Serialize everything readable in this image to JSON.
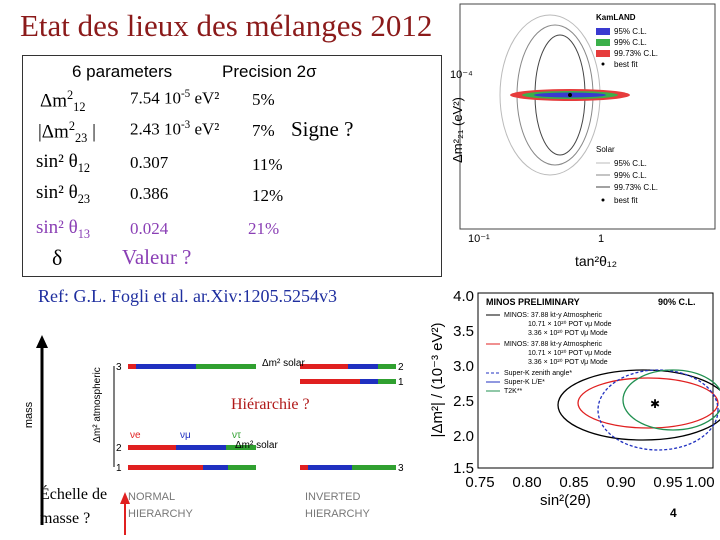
{
  "title": "Etat des lieux des mélanges 2012",
  "table": {
    "headers": [
      "6 parameters",
      "Precision 2σ"
    ],
    "rows": [
      {
        "name": [
          "Δm",
          "2",
          "12"
        ],
        "value": [
          "7.54 10",
          "-5",
          " eV²"
        ],
        "precision": "5%"
      },
      {
        "name": [
          "|Δm",
          "2",
          "23",
          " |"
        ],
        "value": [
          "2.43 10",
          "-3",
          " eV²"
        ],
        "precision": "7%",
        "note": "Signe ?"
      },
      {
        "name": [
          "sin² θ",
          "12"
        ],
        "value": "0.307",
        "precision": "11%"
      },
      {
        "name": [
          "sin² θ",
          "23"
        ],
        "value": "0.386",
        "precision": "12%"
      },
      {
        "name": [
          "sin² θ",
          "13"
        ],
        "value": "0.024",
        "precision": "21%"
      },
      {
        "name": "δ",
        "value": "Valeur ?"
      }
    ]
  },
  "reference": "Ref: G.L. Fogli et al. ar.Xiv:1205.5254v3",
  "kamland": {
    "legend_top": [
      "KamLAND",
      "95% C.L.",
      "99% C.L.",
      "99.73% C.L.",
      "best fit"
    ],
    "legend_bottom": [
      "Solar",
      "95% C.L.",
      "99% C.L.",
      "99.73% C.L.",
      "best fit"
    ],
    "y_label": "Δm²₂₁ (eV²)",
    "y_tick": "10⁻⁴",
    "x_ticks": [
      "10⁻¹",
      "1"
    ],
    "x_label": "tan²θ₁₂"
  },
  "minos": {
    "title": "MINOS PRELIMINARY",
    "cl": "90% C.L.",
    "legend": [
      "MINOS: 37.88 kt-y Atmospheric",
      "10.71 × 10²⁰ POT νμ Mode",
      "3.36 × 10²⁰ POT ν̄μ Mode",
      "MINOS: 37.88 kt-y Atmospheric",
      "10.71 × 10²⁰ POT νμ Mode",
      "3.36 × 10²⁰ POT ν̄μ Mode",
      "Super-K zenith angle*",
      "Super-K L/E*",
      "T2K**"
    ],
    "y_ticks": [
      "4.0",
      "3.5",
      "3.0",
      "2.5",
      "2.0",
      "1.5"
    ],
    "x_ticks": [
      "0.75",
      "0.80",
      "0.85",
      "0.90",
      "0.95",
      "1.00"
    ],
    "y_label": "|Δm²| / (10⁻³ eV²)",
    "x_label": "sin²(2θ)"
  },
  "hierarchy": {
    "mass": "mass",
    "atm": "Δm² atmospheric",
    "solar": "Δm² solar",
    "flavours": [
      "νe",
      "νμ",
      "ντ"
    ],
    "normal": [
      "NORMAL",
      "HIERARCHY"
    ],
    "inverted": [
      "INVERTED",
      "HIERARCHY"
    ],
    "normal_levels": [
      "3",
      "2",
      "1"
    ],
    "inverted_levels": [
      "2",
      "1",
      "3"
    ],
    "question": "Hiérarchie ?",
    "scale": [
      "Échelle de",
      "masse ?"
    ]
  },
  "page_number": "4"
}
